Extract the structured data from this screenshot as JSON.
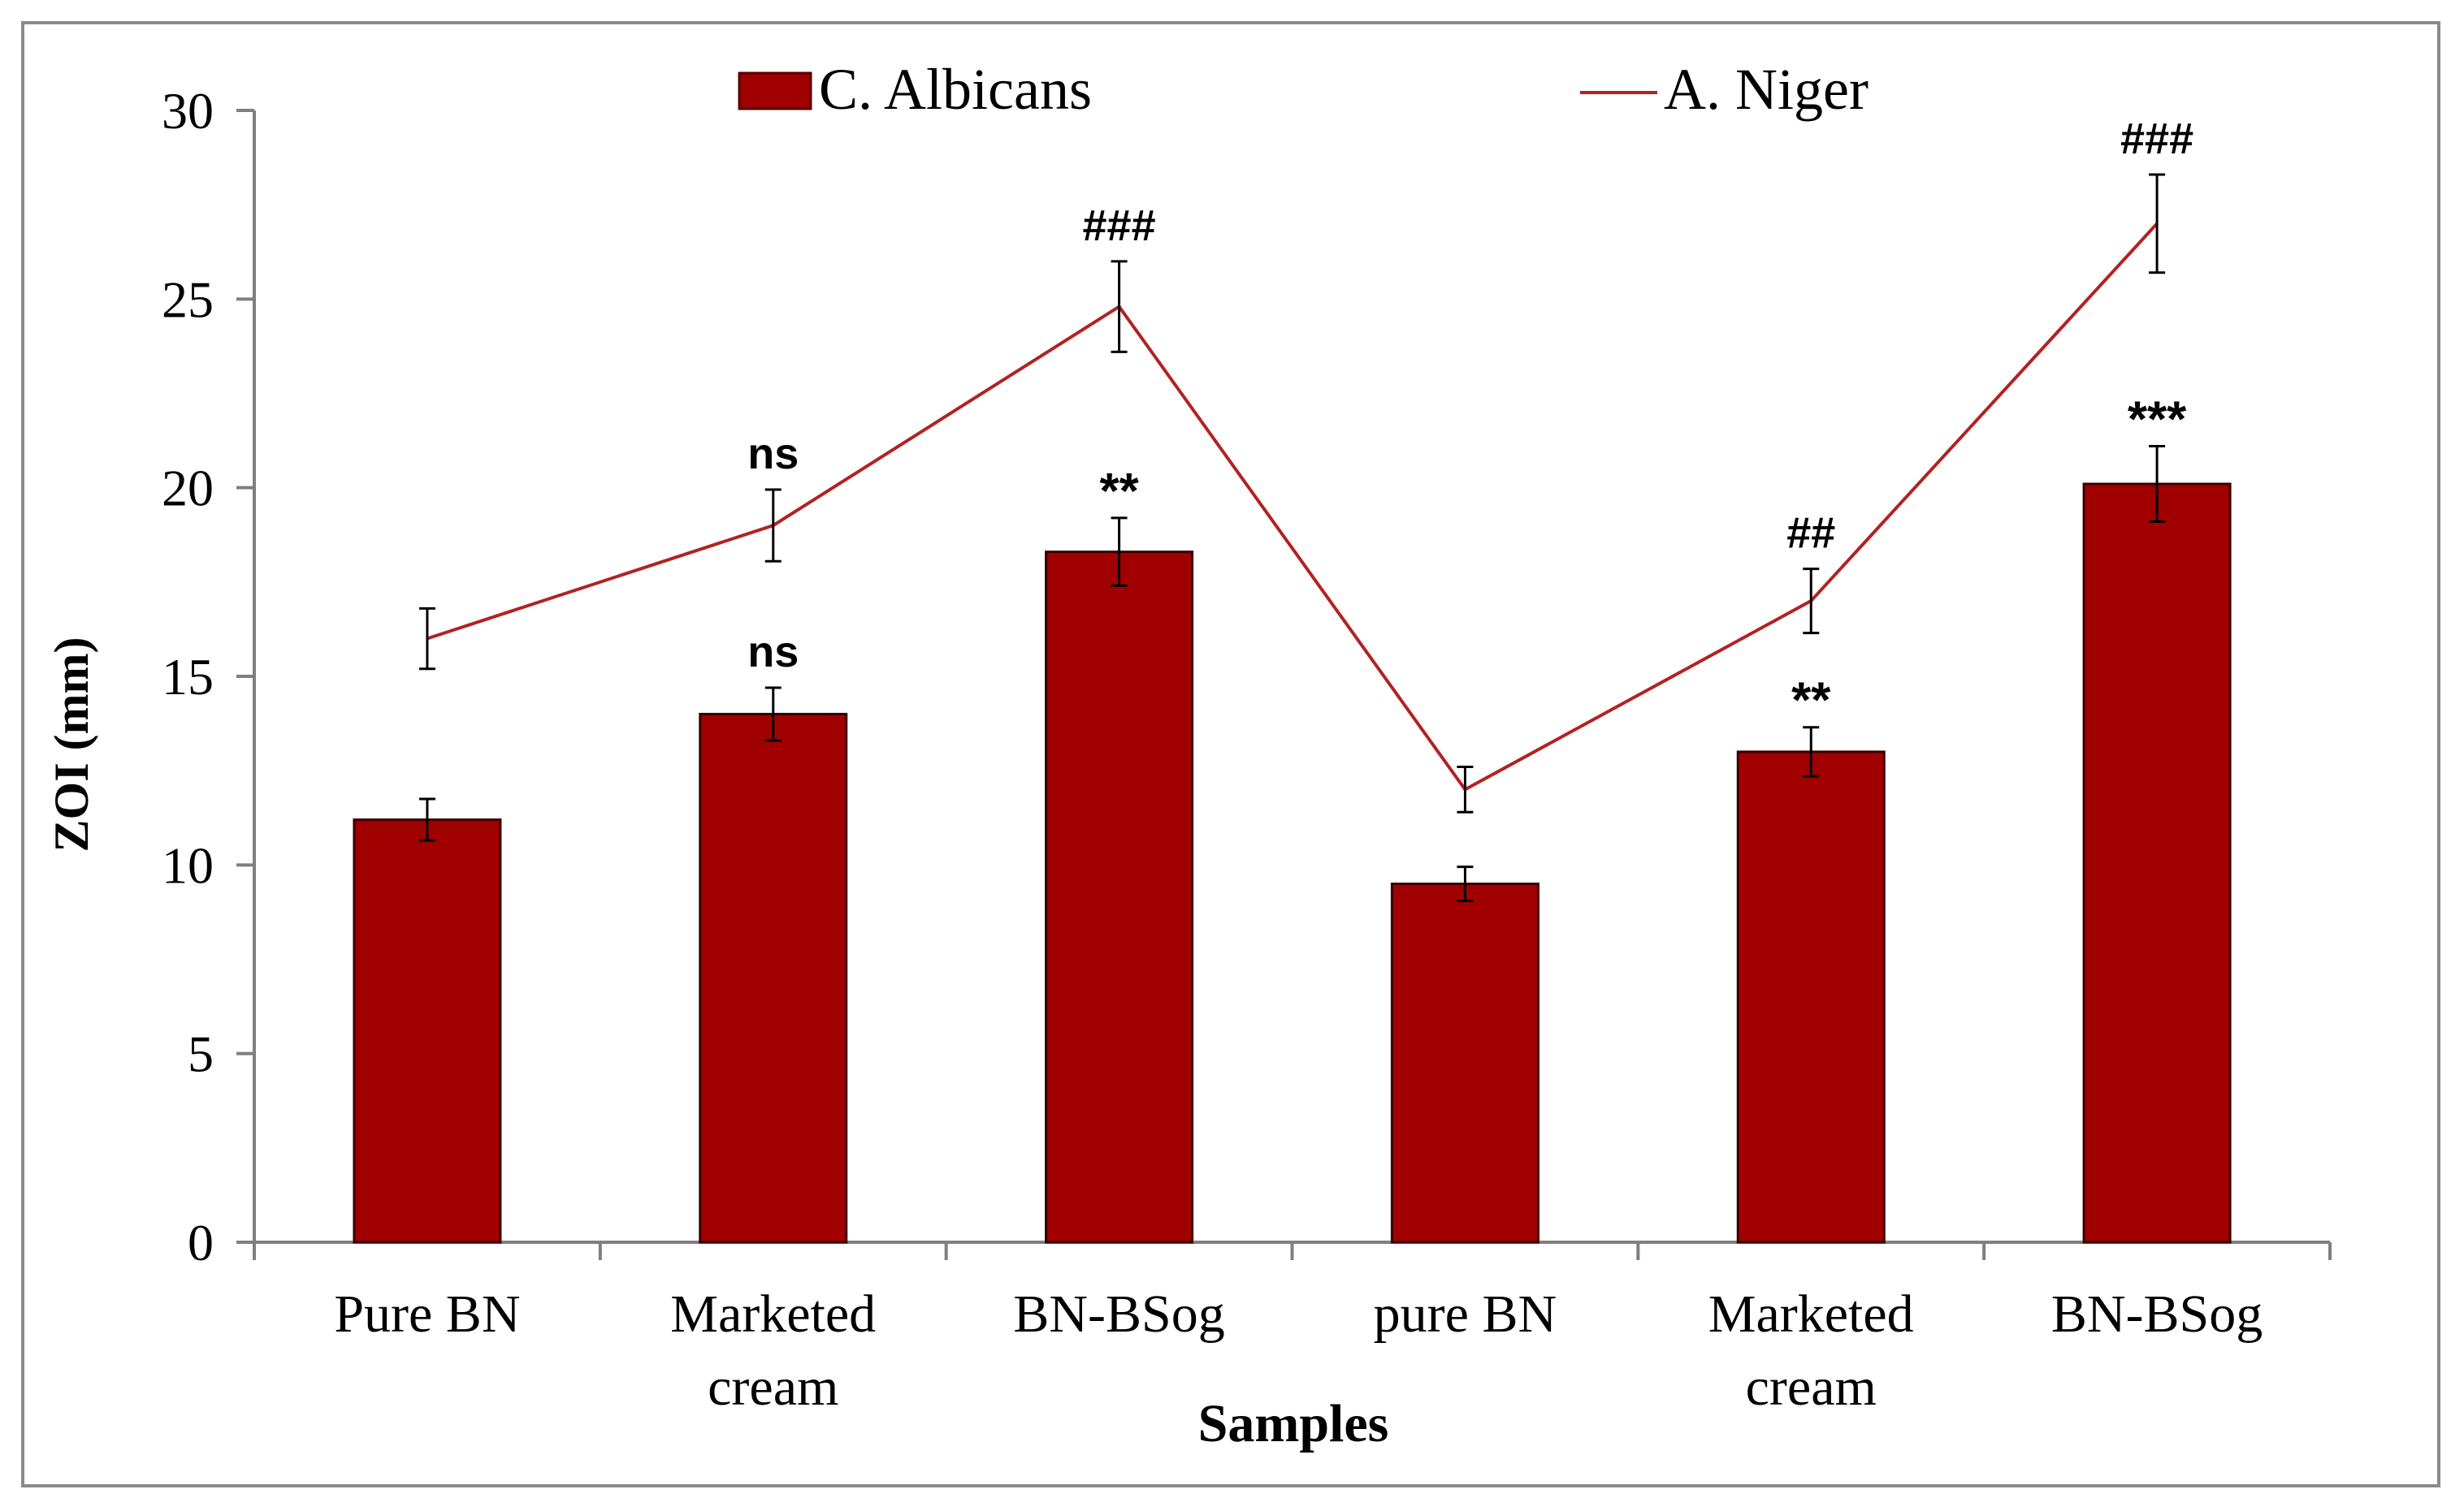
{
  "chart_data": {
    "type": "bar+line",
    "xlabel": "Samples",
    "ylabel": "ZOI (mm)",
    "ylim": [
      0,
      30
    ],
    "yticks": [
      0,
      5,
      10,
      15,
      20,
      25,
      30
    ],
    "categories": [
      [
        "Pure BN"
      ],
      [
        "Marketed",
        "cream"
      ],
      [
        "BN-BSog"
      ],
      [
        "pure BN"
      ],
      [
        "Marketed",
        "cream"
      ],
      [
        "BN-BSog"
      ]
    ],
    "series": [
      {
        "name": "C. Albicans",
        "kind": "bar",
        "color": "#A00000",
        "values": [
          11.2,
          14.0,
          18.3,
          9.5,
          13.0,
          20.1
        ],
        "errors": [
          0.55,
          0.7,
          0.9,
          0.45,
          0.65,
          1.0
        ],
        "annotations": [
          "",
          "ns",
          "**",
          "",
          "**",
          "***"
        ]
      },
      {
        "name": "A. Niger",
        "kind": "line",
        "color": "#B22222",
        "values": [
          16.0,
          19.0,
          24.8,
          12.0,
          17.0,
          27.0
        ],
        "errors": [
          0.8,
          0.95,
          1.2,
          0.6,
          0.85,
          1.3
        ],
        "annotations": [
          "",
          "ns",
          "###",
          "",
          "##",
          "###"
        ]
      }
    ],
    "legend": "top-center"
  }
}
